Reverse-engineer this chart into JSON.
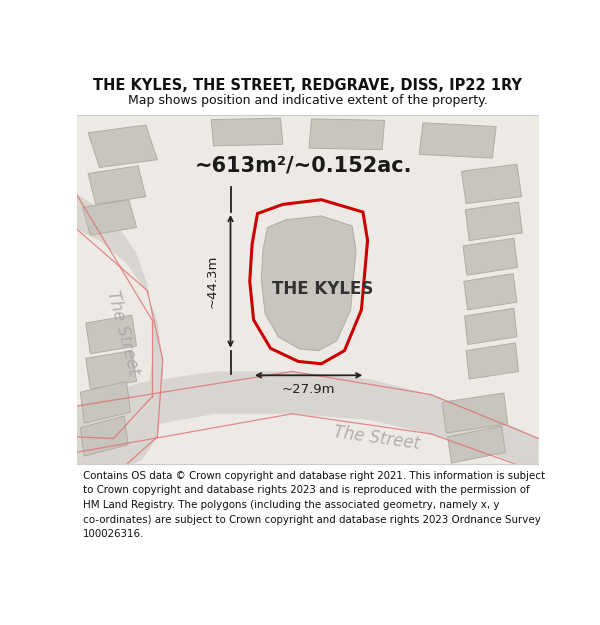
{
  "title": "THE KYLES, THE STREET, REDGRAVE, DISS, IP22 1RY",
  "subtitle": "Map shows position and indicative extent of the property.",
  "footer_lines": [
    "Contains OS data © Crown copyright and database right 2021. This information is subject",
    "to Crown copyright and database rights 2023 and is reproduced with the permission of",
    "HM Land Registry. The polygons (including the associated geometry, namely x, y",
    "co-ordinates) are subject to Crown copyright and database rights 2023 Ordnance Survey",
    "100026316."
  ],
  "area_label": "~613m²/~0.152ac.",
  "property_label": "THE KYLES",
  "dim_width": "~27.9m",
  "dim_height": "~44.3m",
  "bg_color": "#edeae6",
  "road_color": "#d8d4cf",
  "building_color": "#c8c4be",
  "building_edge": "#b0aca6",
  "property_fill": "#edeae6",
  "property_outline": "#cc0000",
  "road_line_color": "#e07070",
  "road_label_color": "#aaaaaa",
  "title_color": "#111111",
  "footer_color": "#111111",
  "dim_color": "#222222",
  "white": "#ffffff",
  "separator_color": "#cccccc"
}
